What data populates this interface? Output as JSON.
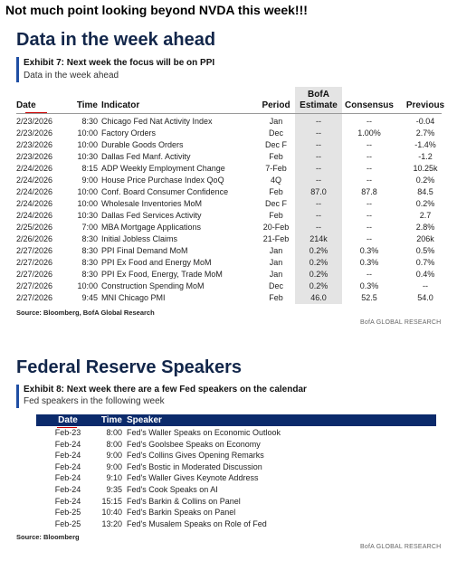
{
  "caption": "Not much point looking beyond NVDA this week!!!",
  "data_section": {
    "title": "Data in the week ahead",
    "exhibit": "Exhibit 7: Next week the focus will be on PPI",
    "subtitle": "Data in the week ahead",
    "table": {
      "headers": [
        "Date",
        "Time",
        "Indicator",
        "Period",
        "BofA Estimate",
        "Consensus",
        "Previous"
      ],
      "rows": [
        [
          "2/23/2026",
          "8:30",
          "Chicago Fed Nat Activity Index",
          "Jan",
          "--",
          "--",
          "-0.04"
        ],
        [
          "2/23/2026",
          "10:00",
          "Factory Orders",
          "Dec",
          "--",
          "1.00%",
          "2.7%"
        ],
        [
          "2/23/2026",
          "10:00",
          "Durable Goods Orders",
          "Dec F",
          "--",
          "--",
          "-1.4%"
        ],
        [
          "2/23/2026",
          "10:30",
          "Dallas Fed Manf. Activity",
          "Feb",
          "--",
          "--",
          "-1.2"
        ],
        [
          "2/24/2026",
          "8:15",
          "ADP Weekly Employment Change",
          "7-Feb",
          "--",
          "--",
          "10.25k"
        ],
        [
          "2/24/2026",
          "9:00",
          "House Price Purchase Index QoQ",
          "4Q",
          "--",
          "--",
          "0.2%"
        ],
        [
          "2/24/2026",
          "10:00",
          "Conf. Board Consumer Confidence",
          "Feb",
          "87.0",
          "87.8",
          "84.5"
        ],
        [
          "2/24/2026",
          "10:00",
          "Wholesale Inventories MoM",
          "Dec F",
          "--",
          "--",
          "0.2%"
        ],
        [
          "2/24/2026",
          "10:30",
          "Dallas Fed Services Activity",
          "Feb",
          "--",
          "--",
          "2.7"
        ],
        [
          "2/25/2026",
          "7:00",
          "MBA Mortgage Applications",
          "20-Feb",
          "--",
          "--",
          "2.8%"
        ],
        [
          "2/26/2026",
          "8:30",
          "Initial Jobless Claims",
          "21-Feb",
          "214k",
          "--",
          "206k"
        ],
        [
          "2/27/2026",
          "8:30",
          "PPI Final Demand MoM",
          "Jan",
          "0.2%",
          "0.3%",
          "0.5%"
        ],
        [
          "2/27/2026",
          "8:30",
          "PPI Ex Food and Energy MoM",
          "Jan",
          "0.2%",
          "0.3%",
          "0.7%"
        ],
        [
          "2/27/2026",
          "8:30",
          "PPI Ex Food, Energy, Trade MoM",
          "Jan",
          "0.2%",
          "--",
          "0.4%"
        ],
        [
          "2/27/2026",
          "10:00",
          "Construction Spending MoM",
          "Dec",
          "0.2%",
          "0.3%",
          "--"
        ],
        [
          "2/27/2026",
          "9:45",
          "MNI Chicago PMI",
          "Feb",
          "46.0",
          "52.5",
          "54.0"
        ]
      ]
    },
    "source": "Source: Bloomberg, BofA Global Research",
    "footer": "BofA GLOBAL RESEARCH"
  },
  "fed_section": {
    "title": "Federal Reserve Speakers",
    "exhibit": "Exhibit 8: Next week there are a few Fed speakers on the calendar",
    "subtitle": "Fed speakers in the following week",
    "table": {
      "headers": [
        "Date",
        "Time",
        "Speaker"
      ],
      "rows": [
        [
          "Feb-23",
          "8:00",
          "Fed's Waller Speaks on Economic Outlook"
        ],
        [
          "Feb-24",
          "8:00",
          "Fed's Goolsbee Speaks on Economy"
        ],
        [
          "Feb-24",
          "9:00",
          "Fed's Collins Gives Opening Remarks"
        ],
        [
          "Feb-24",
          "9:00",
          "Fed's Bostic in Moderated Discussion"
        ],
        [
          "Feb-24",
          "9:10",
          "Fed's Waller Gives Keynote Address"
        ],
        [
          "Feb-24",
          "9:35",
          "Fed's Cook Speaks on AI"
        ],
        [
          "Feb-24",
          "15:15",
          "Fed's Barkin & Collins on Panel"
        ],
        [
          "Feb-25",
          "10:40",
          "Fed's Barkin Speaks on Panel"
        ],
        [
          "Feb-25",
          "13:20",
          "Fed's Musalem Speaks on Role of Fed"
        ]
      ]
    },
    "source": "Source: Bloomberg",
    "footer": "BofA GLOBAL RESEARCH"
  }
}
